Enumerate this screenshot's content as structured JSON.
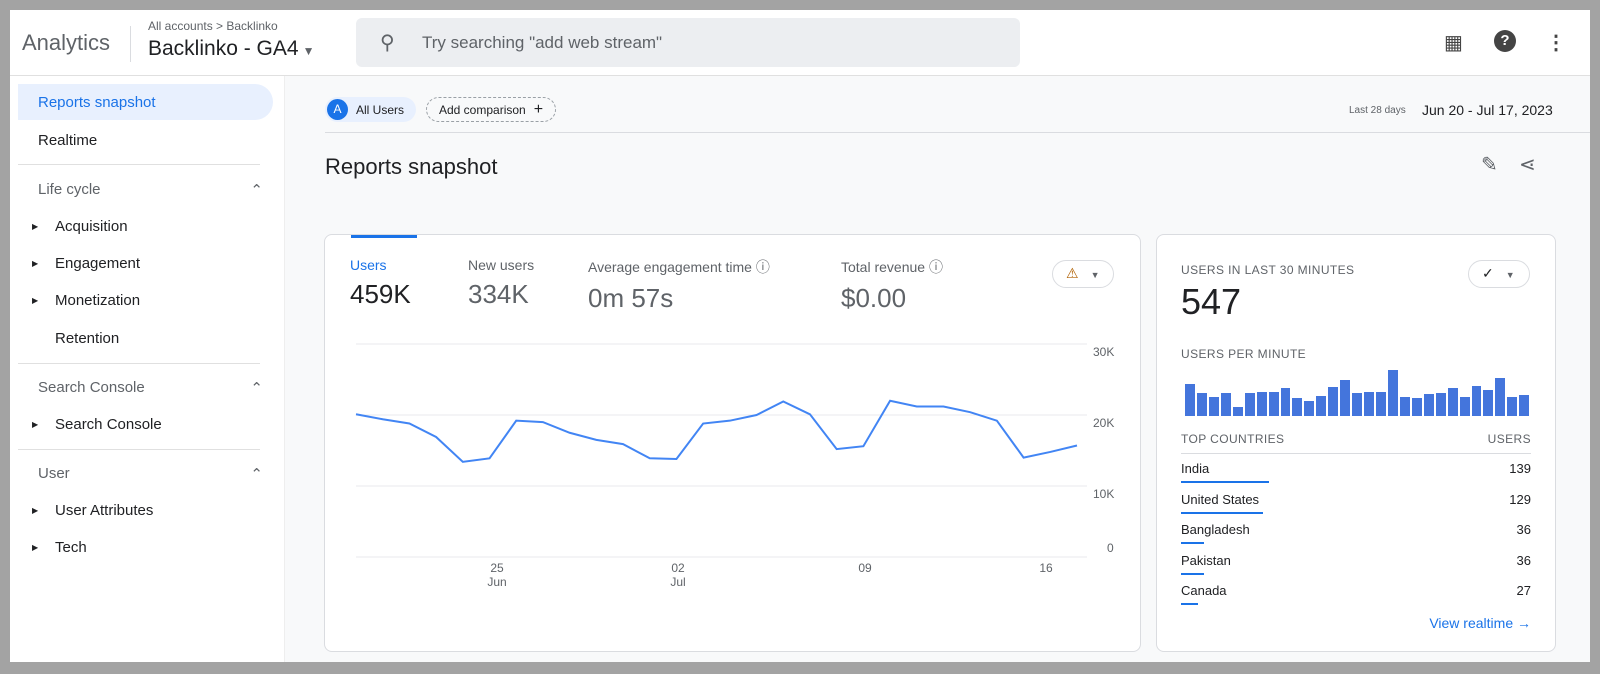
{
  "header": {
    "app_name": "Analytics",
    "breadcrumb": "All accounts > Backlinko",
    "property": "Backlinko - GA4",
    "search_placeholder": "Try searching \"add web stream\""
  },
  "sidebar": {
    "items": [
      {
        "label": "Reports snapshot",
        "active": true
      },
      {
        "label": "Realtime"
      }
    ],
    "sections": [
      {
        "label": "Life cycle",
        "items": [
          "Acquisition",
          "Engagement",
          "Monetization",
          "Retention"
        ]
      },
      {
        "label": "Search Console",
        "items": [
          "Search Console"
        ]
      },
      {
        "label": "User",
        "items": [
          "User Attributes",
          "Tech"
        ]
      }
    ]
  },
  "toolbar": {
    "segment_letter": "A",
    "segment": "All Users",
    "add_comparison": "Add comparison",
    "date_range_label": "Last 28 days",
    "date_range": "Jun 20 - Jul 17, 2023"
  },
  "page_title": "Reports snapshot",
  "metrics": [
    {
      "label": "Users",
      "value": "459K",
      "active": true
    },
    {
      "label": "New users",
      "value": "334K"
    },
    {
      "label": "Average engagement time",
      "value": "0m 57s"
    },
    {
      "label": "Total revenue",
      "value": "$0.00"
    }
  ],
  "chart_data": {
    "type": "line",
    "series": [
      {
        "name": "Users",
        "x": [
          "Jun 20",
          "Jun 21",
          "Jun 22",
          "Jun 23",
          "Jun 24",
          "Jun 25",
          "Jun 26",
          "Jun 27",
          "Jun 28",
          "Jun 29",
          "Jun 30",
          "Jul 1",
          "Jul 2",
          "Jul 3",
          "Jul 4",
          "Jul 5",
          "Jul 6",
          "Jul 7",
          "Jul 8",
          "Jul 9",
          "Jul 10",
          "Jul 11",
          "Jul 12",
          "Jul 13",
          "Jul 14",
          "Jul 15",
          "Jul 16",
          "Jul 17"
        ],
        "values": [
          20100,
          19400,
          18800,
          16900,
          13400,
          13900,
          19200,
          19000,
          17500,
          16500,
          15900,
          13900,
          13800,
          18800,
          19200,
          20000,
          21900,
          20100,
          15200,
          15600,
          22000,
          21200,
          21200,
          20400,
          19200,
          14000,
          14800,
          15700
        ]
      }
    ],
    "ylim": [
      0,
      30000
    ],
    "yticks": [
      "0",
      "10K",
      "20K",
      "30K"
    ],
    "xticks": [
      {
        "day": "25",
        "month": "Jun"
      },
      {
        "day": "02",
        "month": "Jul"
      },
      {
        "day": "09",
        "month": ""
      },
      {
        "day": "16",
        "month": ""
      }
    ],
    "grid": true,
    "color": "#4285f4"
  },
  "realtime": {
    "title": "USERS IN LAST 30 MINUTES",
    "value": "547",
    "per_minute_label": "USERS PER MINUTE",
    "per_minute": [
      67,
      49,
      41,
      49,
      20,
      49,
      51,
      51,
      59,
      38,
      32,
      43,
      62,
      75,
      49,
      51,
      51,
      97,
      41,
      37,
      46,
      49,
      59,
      41,
      64,
      54,
      80,
      40,
      45
    ],
    "countries_header": "TOP COUNTRIES",
    "users_header": "USERS",
    "countries": [
      {
        "name": "India",
        "users": "139"
      },
      {
        "name": "United States",
        "users": "129"
      },
      {
        "name": "Bangladesh",
        "users": "36"
      },
      {
        "name": "Pakistan",
        "users": "36"
      },
      {
        "name": "Canada",
        "users": "27"
      }
    ],
    "view_link": "View realtime"
  }
}
